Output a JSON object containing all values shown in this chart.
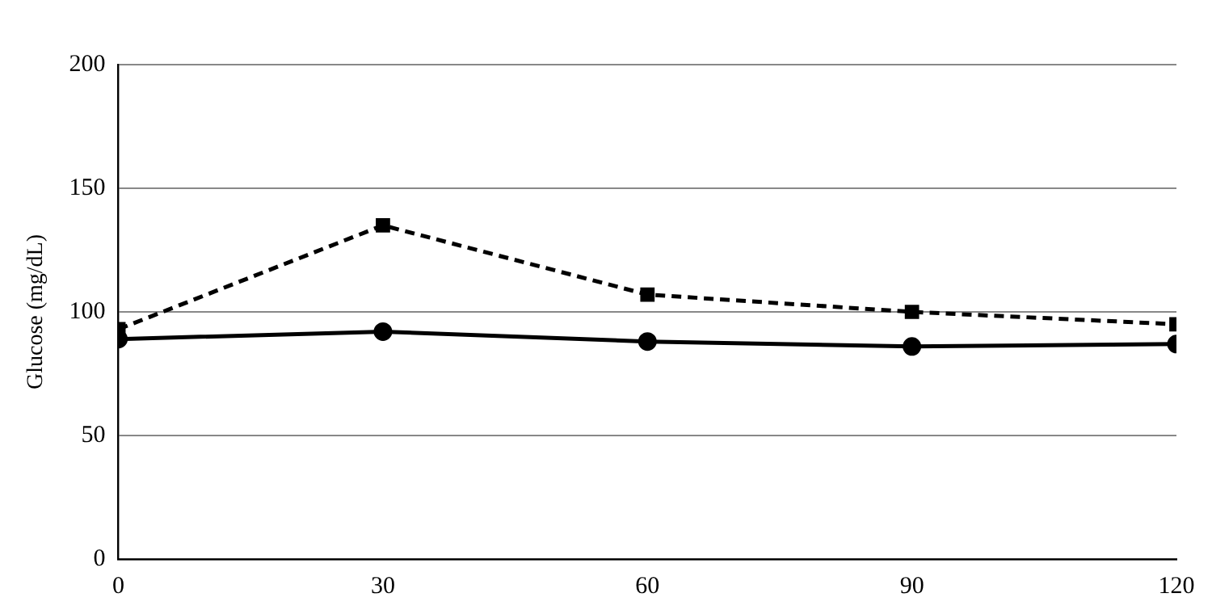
{
  "chart_data": {
    "type": "line",
    "ylabel": "Glucose (mg/dL)",
    "x": [
      0,
      30,
      60,
      90,
      120
    ],
    "xlim": [
      0,
      120
    ],
    "xticks": [
      0,
      30,
      60,
      90,
      120
    ],
    "ylim": [
      0,
      200
    ],
    "yticks": [
      0,
      50,
      100,
      150,
      200
    ],
    "grid": "y",
    "legend": false,
    "series": [
      {
        "color": "#000000",
        "values": [
          93,
          135,
          107,
          100,
          95
        ],
        "marker": "square",
        "line_style": "dashed"
      },
      {
        "color": "#000000",
        "values": [
          89,
          92,
          88,
          86,
          87
        ],
        "marker": "circle",
        "line_style": "solid"
      }
    ]
  }
}
